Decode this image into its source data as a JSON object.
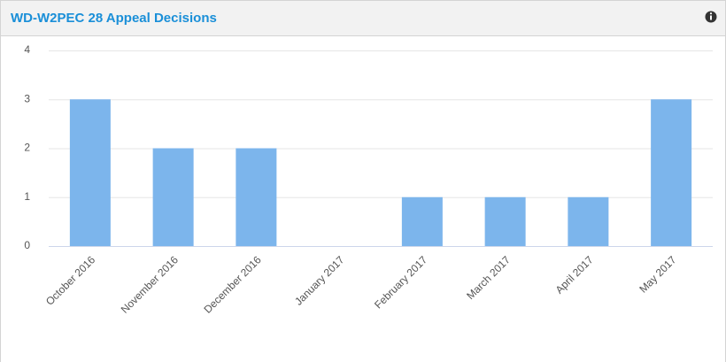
{
  "chart_data": {
    "type": "bar",
    "title": "WD-W2PEC 28 Appeal Decisions",
    "categories": [
      "October 2016",
      "November 2016",
      "December 2016",
      "January 2017",
      "February 2017",
      "March 2017",
      "April 2017",
      "May 2017"
    ],
    "values": [
      3,
      2,
      2,
      0,
      1,
      1,
      1,
      3
    ],
    "color": "#7cb5ec",
    "ylim": [
      0,
      4
    ],
    "yticks": [
      0,
      1,
      2,
      3,
      4
    ],
    "grid": true
  }
}
